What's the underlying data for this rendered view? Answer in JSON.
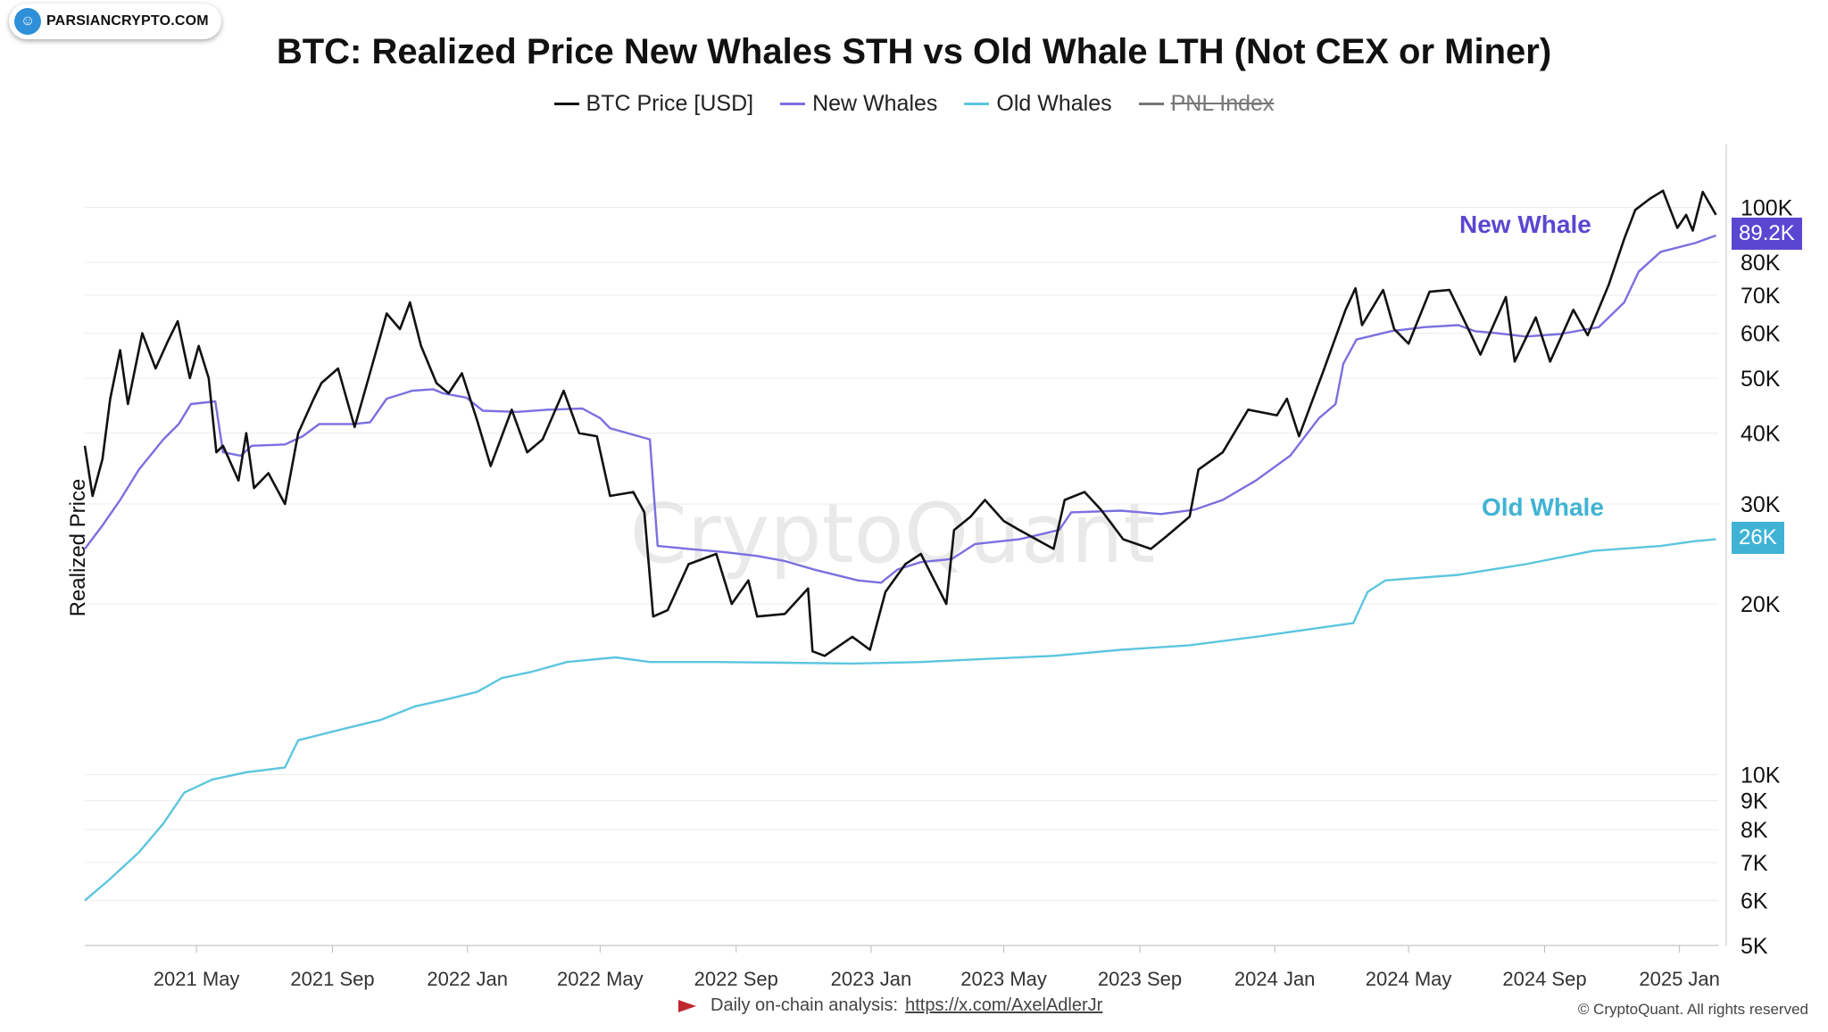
{
  "brand": {
    "name": "PARSIANCRYPTO.COM",
    "logo_icon": "person-icon"
  },
  "title": "BTC: Realized Price New Whales STH vs Old Whale LTH (Not CEX or Miner)",
  "legend": [
    {
      "label": "BTC Price [USD]",
      "color": "#111111",
      "enabled": true
    },
    {
      "label": "New Whales",
      "color": "#7b6fe0",
      "enabled": true
    },
    {
      "label": "Old Whales",
      "color": "#5cc6de",
      "enabled": true
    },
    {
      "label": "PNL Index",
      "color": "#777777",
      "enabled": false
    }
  ],
  "ylabel": "Realized Price",
  "annotations": {
    "new_whale": {
      "label": "New Whale",
      "color": "#5a47d1",
      "value_label": "89.2K"
    },
    "old_whale": {
      "label": "Old Whale",
      "color": "#40b3d4",
      "value_label": "26K"
    }
  },
  "watermark": "CryptoQuant",
  "footer": {
    "text": "Daily on-chain analysis:",
    "link": "https://x.com/AxelAdlerJr"
  },
  "copyright": "© CryptoQuant. All rights reserved",
  "chart_data": {
    "type": "line",
    "title": "BTC: Realized Price New Whales STH vs Old Whale LTH (Not CEX or Miner)",
    "xlabel": "",
    "ylabel": "Realized Price",
    "yscale": "log",
    "ylim": [
      5000,
      130000
    ],
    "xlim": [
      "2021-01-20",
      "2025-02-05"
    ],
    "y_ticks": [
      {
        "value": 5000,
        "label": "5K"
      },
      {
        "value": 6000,
        "label": "6K"
      },
      {
        "value": 7000,
        "label": "7K"
      },
      {
        "value": 8000,
        "label": "8K"
      },
      {
        "value": 9000,
        "label": "9K"
      },
      {
        "value": 10000,
        "label": "10K"
      },
      {
        "value": 20000,
        "label": "20K"
      },
      {
        "value": 30000,
        "label": "30K"
      },
      {
        "value": 40000,
        "label": "40K"
      },
      {
        "value": 50000,
        "label": "50K"
      },
      {
        "value": 60000,
        "label": "60K"
      },
      {
        "value": 70000,
        "label": "70K"
      },
      {
        "value": 80000,
        "label": "80K"
      },
      {
        "value": 100000,
        "label": "100K"
      }
    ],
    "x_ticks": [
      {
        "date": "2021-05-01",
        "label": "2021 May"
      },
      {
        "date": "2021-09-01",
        "label": "2021 Sep"
      },
      {
        "date": "2022-01-01",
        "label": "2022 Jan"
      },
      {
        "date": "2022-05-01",
        "label": "2022 May"
      },
      {
        "date": "2022-09-01",
        "label": "2022 Sep"
      },
      {
        "date": "2023-01-01",
        "label": "2023 Jan"
      },
      {
        "date": "2023-05-01",
        "label": "2023 May"
      },
      {
        "date": "2023-09-01",
        "label": "2023 Sep"
      },
      {
        "date": "2024-01-01",
        "label": "2024 Jan"
      },
      {
        "date": "2024-05-01",
        "label": "2024 May"
      },
      {
        "date": "2024-09-01",
        "label": "2024 Sep"
      },
      {
        "date": "2025-01-01",
        "label": "2025 Jan"
      }
    ],
    "grid": true,
    "series": [
      {
        "name": "BTC Price [USD]",
        "color": "#111111",
        "points": [
          [
            "2021-01-20",
            38000
          ],
          [
            "2021-01-27",
            31000
          ],
          [
            "2021-02-05",
            36000
          ],
          [
            "2021-02-12",
            46000
          ],
          [
            "2021-02-21",
            56000
          ],
          [
            "2021-02-28",
            45000
          ],
          [
            "2021-03-13",
            60000
          ],
          [
            "2021-03-25",
            52000
          ],
          [
            "2021-04-05",
            58000
          ],
          [
            "2021-04-14",
            63000
          ],
          [
            "2021-04-25",
            50000
          ],
          [
            "2021-05-03",
            57000
          ],
          [
            "2021-05-12",
            50000
          ],
          [
            "2021-05-19",
            37000
          ],
          [
            "2021-05-25",
            38000
          ],
          [
            "2021-06-08",
            33000
          ],
          [
            "2021-06-15",
            40000
          ],
          [
            "2021-06-22",
            32000
          ],
          [
            "2021-07-05",
            34000
          ],
          [
            "2021-07-20",
            30000
          ],
          [
            "2021-08-01",
            40000
          ],
          [
            "2021-08-15",
            46000
          ],
          [
            "2021-08-22",
            49000
          ],
          [
            "2021-09-06",
            52000
          ],
          [
            "2021-09-21",
            41000
          ],
          [
            "2021-10-01",
            48000
          ],
          [
            "2021-10-15",
            60000
          ],
          [
            "2021-10-20",
            65000
          ],
          [
            "2021-11-01",
            61000
          ],
          [
            "2021-11-10",
            68000
          ],
          [
            "2021-11-20",
            57000
          ],
          [
            "2021-12-04",
            49000
          ],
          [
            "2021-12-15",
            47000
          ],
          [
            "2021-12-27",
            51000
          ],
          [
            "2022-01-10",
            42000
          ],
          [
            "2022-01-22",
            35000
          ],
          [
            "2022-02-10",
            44000
          ],
          [
            "2022-02-24",
            37000
          ],
          [
            "2022-03-10",
            39000
          ],
          [
            "2022-03-29",
            47500
          ],
          [
            "2022-04-12",
            40000
          ],
          [
            "2022-04-28",
            39500
          ],
          [
            "2022-05-10",
            31000
          ],
          [
            "2022-05-31",
            31500
          ],
          [
            "2022-06-10",
            29000
          ],
          [
            "2022-06-18",
            19000
          ],
          [
            "2022-07-01",
            19500
          ],
          [
            "2022-07-20",
            23500
          ],
          [
            "2022-08-14",
            24500
          ],
          [
            "2022-08-28",
            20000
          ],
          [
            "2022-09-12",
            22000
          ],
          [
            "2022-09-20",
            19000
          ],
          [
            "2022-10-15",
            19200
          ],
          [
            "2022-11-05",
            21300
          ],
          [
            "2022-11-09",
            16500
          ],
          [
            "2022-11-20",
            16200
          ],
          [
            "2022-12-15",
            17500
          ],
          [
            "2022-12-31",
            16600
          ],
          [
            "2023-01-14",
            21000
          ],
          [
            "2023-02-01",
            23500
          ],
          [
            "2023-02-15",
            24500
          ],
          [
            "2023-03-10",
            20000
          ],
          [
            "2023-03-17",
            27000
          ],
          [
            "2023-04-01",
            28500
          ],
          [
            "2023-04-14",
            30500
          ],
          [
            "2023-05-01",
            28000
          ],
          [
            "2023-05-15",
            27000
          ],
          [
            "2023-06-15",
            25000
          ],
          [
            "2023-06-25",
            30500
          ],
          [
            "2023-07-13",
            31500
          ],
          [
            "2023-07-28",
            29300
          ],
          [
            "2023-08-17",
            26000
          ],
          [
            "2023-09-11",
            25000
          ],
          [
            "2023-09-25",
            26300
          ],
          [
            "2023-10-16",
            28500
          ],
          [
            "2023-10-24",
            34500
          ],
          [
            "2023-11-15",
            37000
          ],
          [
            "2023-12-08",
            44000
          ],
          [
            "2024-01-03",
            43000
          ],
          [
            "2024-01-12",
            46000
          ],
          [
            "2024-01-23",
            39500
          ],
          [
            "2024-02-14",
            51500
          ],
          [
            "2024-03-05",
            66000
          ],
          [
            "2024-03-14",
            72000
          ],
          [
            "2024-03-20",
            62000
          ],
          [
            "2024-04-08",
            71500
          ],
          [
            "2024-04-18",
            61000
          ],
          [
            "2024-05-01",
            57500
          ],
          [
            "2024-05-20",
            71000
          ],
          [
            "2024-06-07",
            71500
          ],
          [
            "2024-06-25",
            60500
          ],
          [
            "2024-07-05",
            55000
          ],
          [
            "2024-07-28",
            69500
          ],
          [
            "2024-08-05",
            53500
          ],
          [
            "2024-08-24",
            64000
          ],
          [
            "2024-09-06",
            53500
          ],
          [
            "2024-09-27",
            66000
          ],
          [
            "2024-10-10",
            59500
          ],
          [
            "2024-10-29",
            73000
          ],
          [
            "2024-11-12",
            88000
          ],
          [
            "2024-11-22",
            99000
          ],
          [
            "2024-12-05",
            103500
          ],
          [
            "2024-12-17",
            107000
          ],
          [
            "2024-12-30",
            92000
          ],
          [
            "2025-01-07",
            97000
          ],
          [
            "2025-01-13",
            91000
          ],
          [
            "2025-01-22",
            106500
          ],
          [
            "2025-02-03",
            97000
          ]
        ]
      },
      {
        "name": "New Whales",
        "color": "#7b6fe0",
        "points": [
          [
            "2021-01-20",
            25000
          ],
          [
            "2021-02-05",
            27500
          ],
          [
            "2021-02-21",
            30500
          ],
          [
            "2021-03-10",
            34500
          ],
          [
            "2021-04-01",
            39000
          ],
          [
            "2021-04-15",
            41500
          ],
          [
            "2021-04-26",
            45000
          ],
          [
            "2021-05-18",
            45500
          ],
          [
            "2021-05-25",
            37000
          ],
          [
            "2021-06-10",
            36500
          ],
          [
            "2021-06-20",
            38000
          ],
          [
            "2021-07-20",
            38200
          ],
          [
            "2021-08-05",
            39500
          ],
          [
            "2021-08-20",
            41500
          ],
          [
            "2021-09-20",
            41500
          ],
          [
            "2021-10-05",
            41800
          ],
          [
            "2021-10-20",
            46000
          ],
          [
            "2021-11-12",
            47500
          ],
          [
            "2021-12-01",
            47800
          ],
          [
            "2021-12-10",
            47000
          ],
          [
            "2021-12-31",
            46200
          ],
          [
            "2022-01-15",
            43800
          ],
          [
            "2022-02-15",
            43600
          ],
          [
            "2022-03-15",
            44000
          ],
          [
            "2022-04-15",
            44200
          ],
          [
            "2022-05-01",
            42500
          ],
          [
            "2022-05-10",
            40800
          ],
          [
            "2022-06-15",
            39000
          ],
          [
            "2022-06-22",
            25300
          ],
          [
            "2022-07-20",
            25000
          ],
          [
            "2022-08-20",
            24700
          ],
          [
            "2022-09-20",
            24300
          ],
          [
            "2022-10-15",
            23800
          ],
          [
            "2022-11-10",
            23000
          ],
          [
            "2022-12-20",
            22000
          ],
          [
            "2023-01-10",
            21800
          ],
          [
            "2023-01-25",
            23000
          ],
          [
            "2023-02-15",
            23700
          ],
          [
            "2023-03-15",
            24000
          ],
          [
            "2023-04-05",
            25500
          ],
          [
            "2023-05-15",
            26000
          ],
          [
            "2023-06-20",
            27000
          ],
          [
            "2023-07-01",
            29000
          ],
          [
            "2023-08-15",
            29200
          ],
          [
            "2023-09-20",
            28800
          ],
          [
            "2023-10-20",
            29300
          ],
          [
            "2023-11-15",
            30500
          ],
          [
            "2023-12-15",
            33000
          ],
          [
            "2024-01-15",
            36500
          ],
          [
            "2024-02-10",
            42500
          ],
          [
            "2024-02-25",
            45000
          ],
          [
            "2024-03-03",
            53000
          ],
          [
            "2024-03-15",
            58500
          ],
          [
            "2024-04-15",
            60500
          ],
          [
            "2024-05-15",
            61500
          ],
          [
            "2024-06-15",
            62000
          ],
          [
            "2024-06-30",
            60500
          ],
          [
            "2024-07-20",
            60000
          ],
          [
            "2024-08-15",
            59200
          ],
          [
            "2024-09-15",
            59800
          ],
          [
            "2024-10-20",
            61500
          ],
          [
            "2024-11-12",
            68000
          ],
          [
            "2024-11-25",
            77000
          ],
          [
            "2024-12-15",
            83500
          ],
          [
            "2025-01-15",
            86500
          ],
          [
            "2025-02-03",
            89200
          ]
        ]
      },
      {
        "name": "Old Whales",
        "color": "#5cc6de",
        "points": [
          [
            "2021-01-20",
            6000
          ],
          [
            "2021-02-10",
            6500
          ],
          [
            "2021-03-10",
            7300
          ],
          [
            "2021-04-01",
            8200
          ],
          [
            "2021-04-20",
            9300
          ],
          [
            "2021-05-15",
            9800
          ],
          [
            "2021-06-15",
            10100
          ],
          [
            "2021-07-20",
            10300
          ],
          [
            "2021-08-01",
            11500
          ],
          [
            "2021-09-15",
            12100
          ],
          [
            "2021-10-15",
            12500
          ],
          [
            "2021-11-15",
            13200
          ],
          [
            "2021-12-15",
            13600
          ],
          [
            "2022-01-10",
            14000
          ],
          [
            "2022-02-01",
            14800
          ],
          [
            "2022-03-01",
            15200
          ],
          [
            "2022-04-01",
            15800
          ],
          [
            "2022-05-15",
            16100
          ],
          [
            "2022-06-15",
            15800
          ],
          [
            "2022-08-15",
            15800
          ],
          [
            "2022-10-15",
            15750
          ],
          [
            "2022-12-15",
            15700
          ],
          [
            "2023-02-15",
            15800
          ],
          [
            "2023-04-15",
            16000
          ],
          [
            "2023-06-15",
            16200
          ],
          [
            "2023-08-15",
            16600
          ],
          [
            "2023-10-15",
            16900
          ],
          [
            "2023-12-15",
            17500
          ],
          [
            "2024-02-15",
            18200
          ],
          [
            "2024-03-12",
            18500
          ],
          [
            "2024-03-25",
            21000
          ],
          [
            "2024-04-10",
            22000
          ],
          [
            "2024-06-15",
            22500
          ],
          [
            "2024-08-15",
            23500
          ],
          [
            "2024-10-15",
            24800
          ],
          [
            "2024-12-15",
            25300
          ],
          [
            "2025-01-15",
            25800
          ],
          [
            "2025-02-03",
            26000
          ]
        ]
      }
    ]
  }
}
